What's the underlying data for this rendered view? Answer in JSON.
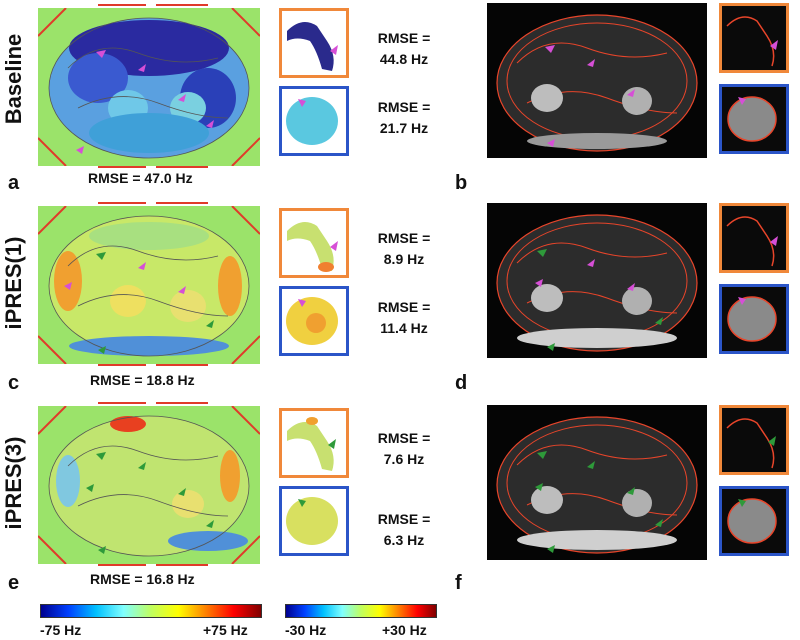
{
  "rows": [
    {
      "label": "Baseline",
      "main_rmse": "RMSE = 47.0 Hz",
      "inset1_rmse": [
        "RMSE =",
        "44.8 Hz"
      ],
      "inset2_rmse": [
        "RMSE =",
        "21.7 Hz"
      ],
      "left_letter": "a",
      "right_letter": "b"
    },
    {
      "label": "iPRES(1)",
      "main_rmse": "RMSE = 18.8 Hz",
      "inset1_rmse": [
        "RMSE =",
        "8.9 Hz"
      ],
      "inset2_rmse": [
        "RMSE =",
        "11.4 Hz"
      ],
      "left_letter": "c",
      "right_letter": "d"
    },
    {
      "label": "iPRES(3)",
      "main_rmse": "RMSE = 16.8 Hz",
      "inset1_rmse": [
        "RMSE =",
        "7.6 Hz"
      ],
      "inset2_rmse": [
        "RMSE =",
        "6.3 Hz"
      ],
      "left_letter": "e",
      "right_letter": "f"
    }
  ],
  "colorbars": [
    {
      "min": "-75 Hz",
      "max": "+75 Hz"
    },
    {
      "min": "-30 Hz",
      "max": "+30 Hz"
    }
  ],
  "colors": {
    "inset_orange": "#f0883a",
    "inset_blue": "#2b55c8",
    "arrow_magenta": "#d64fd6",
    "arrow_green": "#2e9a3a",
    "contour_red": "#e8452a",
    "map_background": "#9be36a"
  }
}
